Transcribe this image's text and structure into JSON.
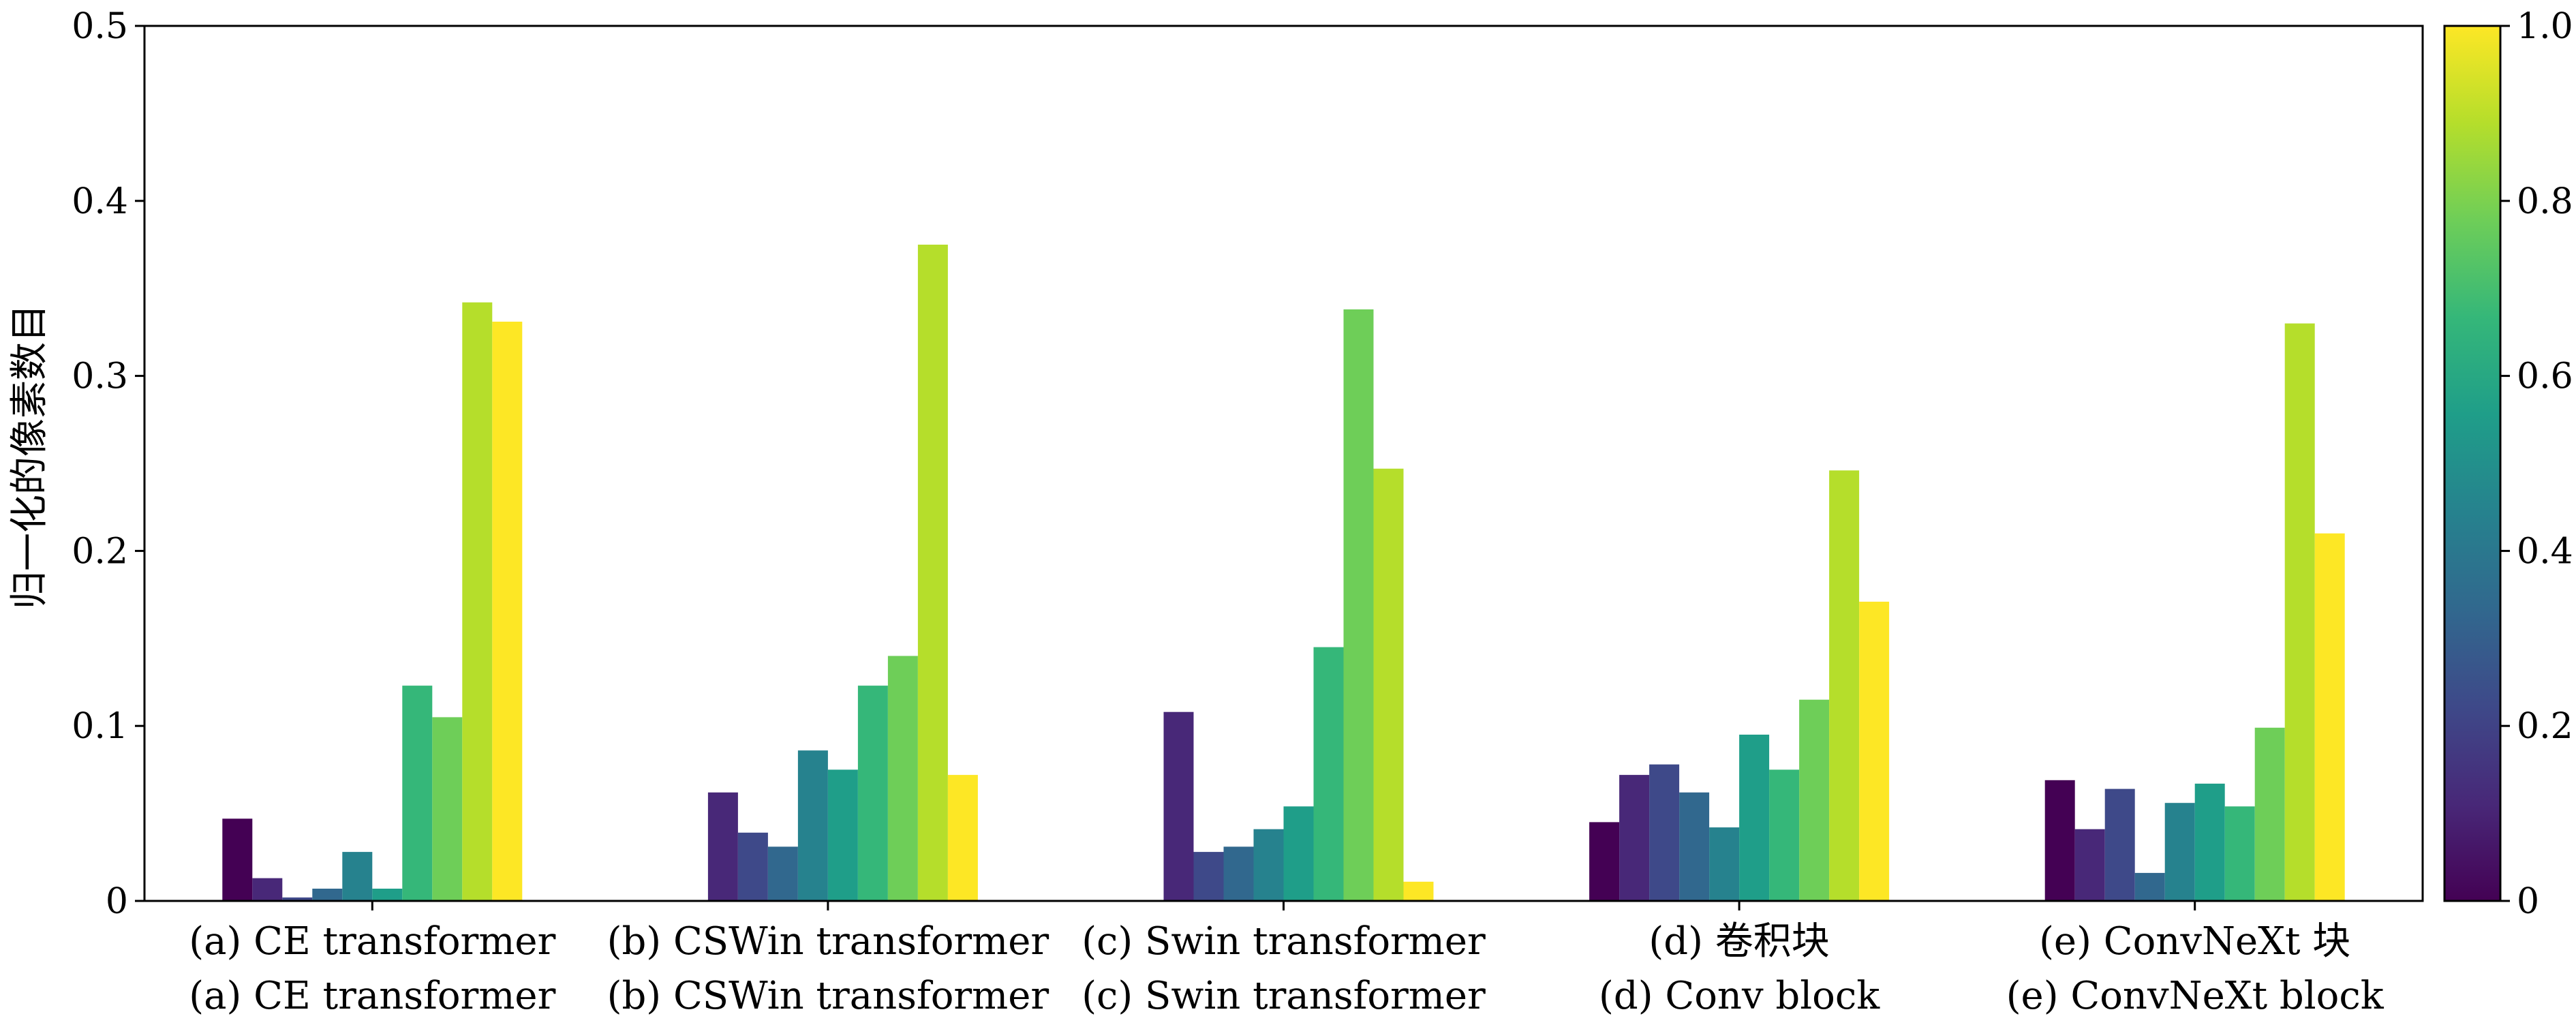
{
  "chart_data": {
    "type": "bar",
    "ylabel": "归一化的像素数目",
    "ylim": [
      0,
      0.5
    ],
    "yticks": [
      "0",
      "0.1",
      "0.2",
      "0.3",
      "0.4",
      "0.5"
    ],
    "categories": [
      {
        "line1": "(a) CE transformer",
        "line2": "(a) CE transformer",
        "values": [
          0.047,
          0.013,
          0.002,
          0.007,
          0.028,
          0.007,
          0.123,
          0.105,
          0.342,
          0.331
        ]
      },
      {
        "line1": "(b) CSWin transformer",
        "line2": "(b) CSWin transformer",
        "values": [
          0.0,
          0.062,
          0.039,
          0.031,
          0.086,
          0.075,
          0.123,
          0.14,
          0.375,
          0.072
        ]
      },
      {
        "line1": "(c) Swin transformer",
        "line2": "(c) Swin transformer",
        "values": [
          0.0,
          0.108,
          0.028,
          0.031,
          0.041,
          0.054,
          0.145,
          0.338,
          0.247,
          0.011
        ]
      },
      {
        "line1": "(d) 卷积块",
        "line2": "(d) Conv block",
        "values": [
          0.045,
          0.072,
          0.078,
          0.062,
          0.042,
          0.095,
          0.075,
          0.115,
          0.246,
          0.171
        ]
      },
      {
        "line1": "(e) ConvNeXt 块",
        "line2": "(e) ConvNeXt block",
        "values": [
          0.069,
          0.041,
          0.064,
          0.016,
          0.056,
          0.067,
          0.054,
          0.099,
          0.33,
          0.21
        ]
      }
    ],
    "bar_colors": [
      "#440154",
      "#482878",
      "#3e4989",
      "#31688e",
      "#26828e",
      "#1f9e89",
      "#35b779",
      "#6ece58",
      "#b5de2b",
      "#fde725"
    ],
    "colorbar": {
      "range": [
        0,
        1.0
      ],
      "ticks": [
        "0",
        "0.2",
        "0.4",
        "0.6",
        "0.8",
        "1.0"
      ],
      "colormap": [
        "#440154",
        "#482878",
        "#3e4989",
        "#31688e",
        "#26828e",
        "#1f9e89",
        "#35b779",
        "#6ece58",
        "#b5de2b",
        "#fde725"
      ]
    },
    "grid": false
  }
}
